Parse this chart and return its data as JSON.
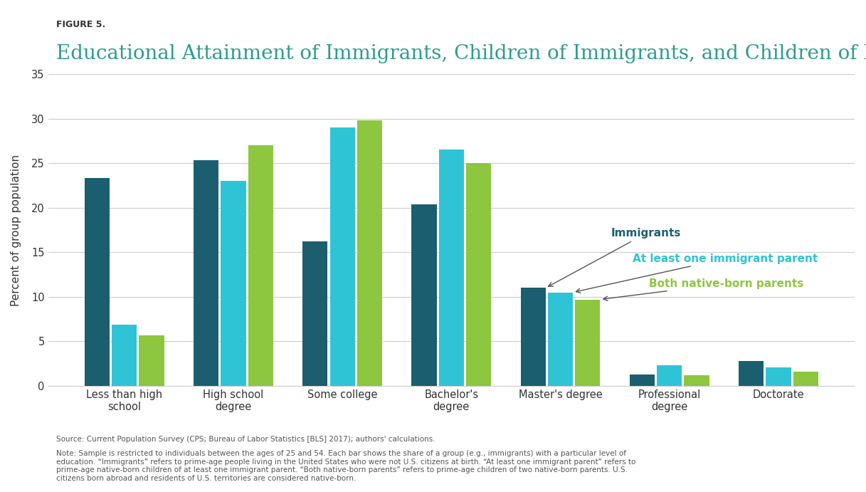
{
  "title_label": "FIGURE 5.",
  "title": "Educational Attainment of Immigrants, Children of Immigrants, and Children of Natives",
  "ylabel": "Percent of group population",
  "ylim": [
    0,
    35
  ],
  "yticks": [
    0,
    5,
    10,
    15,
    20,
    25,
    30,
    35
  ],
  "categories": [
    "Less than high\nschool",
    "High school\ndegree",
    "Some college",
    "Bachelor's\ndegree",
    "Master's degree",
    "Professional\ndegree",
    "Doctorate"
  ],
  "immigrants": [
    23.3,
    25.3,
    16.2,
    20.4,
    11.0,
    1.3,
    2.8
  ],
  "at_least_one": [
    6.9,
    23.0,
    29.0,
    26.5,
    10.5,
    2.3,
    2.1
  ],
  "both_native": [
    5.7,
    27.0,
    29.8,
    25.0,
    9.7,
    1.2,
    1.6
  ],
  "color_immigrants": "#1a5e70",
  "color_at_least_one": "#2ec4d6",
  "color_both_native": "#8dc63f",
  "legend_immigrants": "Immigrants",
  "legend_at_least_one": "At least one immigrant parent",
  "legend_both_native": "Both native-born parents",
  "source_text": "Source: Current Population Survey (CPS; Bureau of Labor Statistics [BLS] 2017); authors' calculations.",
  "note_text": "Note: Sample is restricted to individuals between the ages of 25 and 54. Each bar shows the share of a group (e.g., immigrants) with a particular level of\neducation. “Immigrants” refers to prime-age people living in the United States who were not U.S. citizens at birth. “At least one immigrant parent” refers to\nprime-age native-born children of at least one immigrant parent. “Both native-born parents” refers to prime-age children of two native-born parents. U.S.\ncitizens born abroad and residents of U.S. territories are considered native-born.",
  "background_color": "#ffffff",
  "title_color": "#2e9b8e",
  "figure_label_color": "#333333"
}
